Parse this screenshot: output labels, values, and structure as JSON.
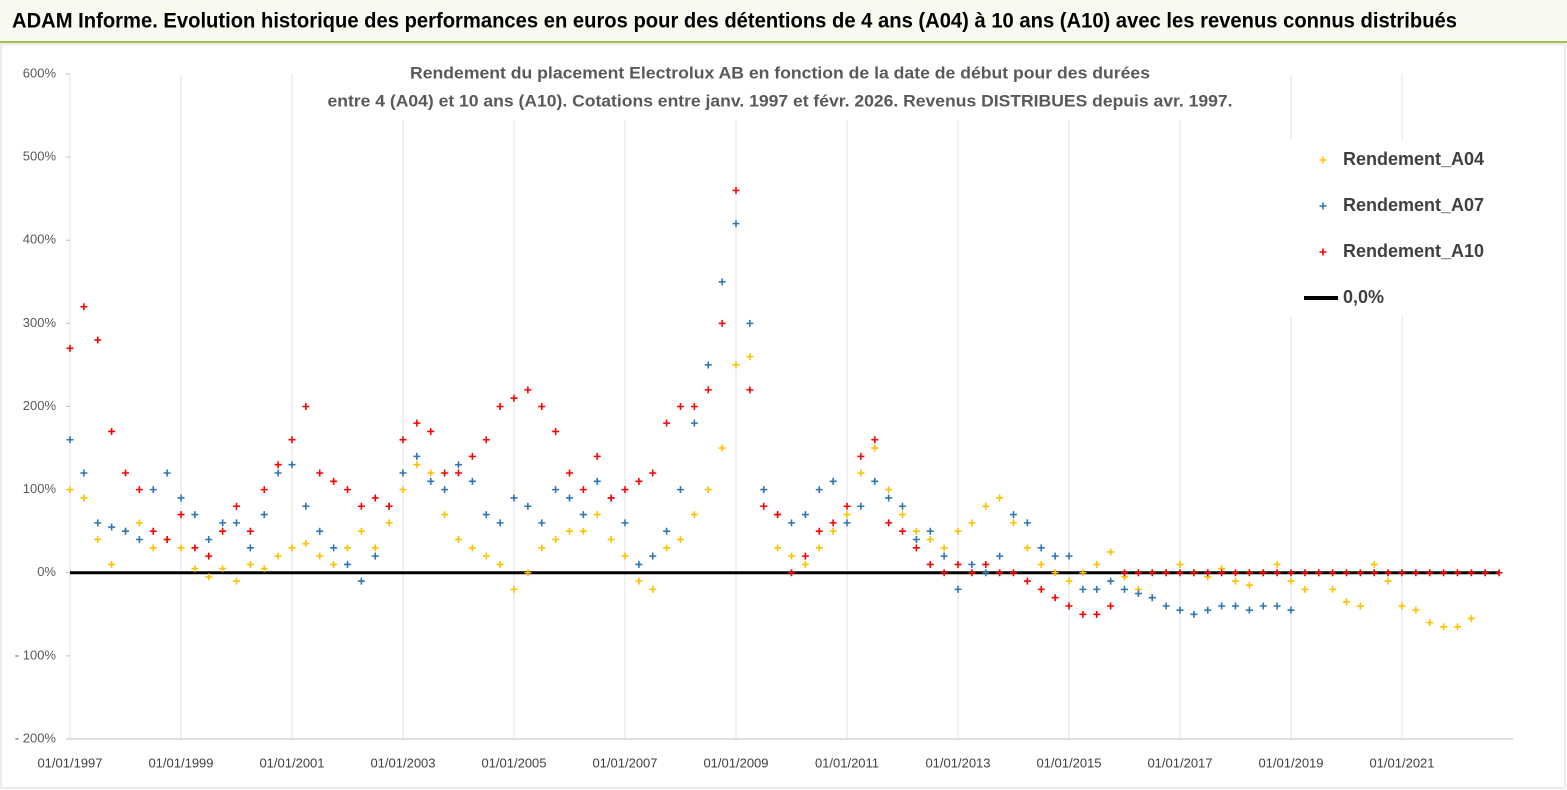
{
  "header": "ADAM Informe. Evolution historique des performances en euros pour des détentions de 4 ans (A04) à 10 ans (A10) avec les revenus connus distribués",
  "chart_data": {
    "type": "scatter",
    "title": [
      "Rendement du placement Electrolux AB en fonction de la date de début pour des durées",
      "entre 4 (A04) et 10 ans (A10). Cotations entre janv. 1997 et févr. 2026. Revenus DISTRIBUES depuis avr. 1997."
    ],
    "x": [
      "01/01/1997",
      "01/04/1997",
      "01/07/1997",
      "01/10/1997",
      "01/01/1998",
      "01/04/1998",
      "01/07/1998",
      "01/10/1998",
      "01/01/1999",
      "01/04/1999",
      "01/07/1999",
      "01/10/1999",
      "01/01/2000",
      "01/04/2000",
      "01/07/2000",
      "01/10/2000",
      "01/01/2001",
      "01/04/2001",
      "01/07/2001",
      "01/10/2001",
      "01/01/2002",
      "01/04/2002",
      "01/07/2002",
      "01/10/2002",
      "01/01/2003",
      "01/04/2003",
      "01/07/2003",
      "01/10/2003",
      "01/01/2004",
      "01/04/2004",
      "01/07/2004",
      "01/10/2004",
      "01/01/2005",
      "01/04/2005",
      "01/07/2005",
      "01/10/2005",
      "01/01/2006",
      "01/04/2006",
      "01/07/2006",
      "01/10/2006",
      "01/01/2007",
      "01/04/2007",
      "01/07/2007",
      "01/10/2007",
      "01/01/2008",
      "01/04/2008",
      "01/07/2008",
      "01/10/2008",
      "01/01/2009",
      "01/04/2009",
      "01/07/2009",
      "01/10/2009",
      "01/01/2010",
      "01/04/2010",
      "01/07/2010",
      "01/10/2010",
      "01/01/2011",
      "01/04/2011",
      "01/07/2011",
      "01/10/2011",
      "01/01/2012",
      "01/04/2012",
      "01/07/2012",
      "01/10/2012",
      "01/01/2013",
      "01/04/2013",
      "01/07/2013",
      "01/10/2013",
      "01/01/2014",
      "01/04/2014",
      "01/07/2014",
      "01/10/2014",
      "01/01/2015",
      "01/04/2015",
      "01/07/2015",
      "01/10/2015",
      "01/01/2016",
      "01/04/2016",
      "01/07/2016",
      "01/10/2016",
      "01/01/2017",
      "01/04/2017",
      "01/07/2017",
      "01/10/2017",
      "01/01/2018",
      "01/04/2018",
      "01/07/2018",
      "01/10/2018",
      "01/01/2019",
      "01/04/2019",
      "01/07/2019",
      "01/10/2019",
      "01/01/2020",
      "01/04/2020",
      "01/07/2020",
      "01/10/2020",
      "01/01/2021",
      "01/04/2021",
      "01/07/2021",
      "01/10/2021",
      "01/01/2022",
      "01/04/2022",
      "01/07/2022",
      "01/10/2022"
    ],
    "series": [
      {
        "name": "Rendement_A04",
        "color": "#ffc000",
        "values": [
          100,
          90,
          40,
          10,
          50,
          60,
          30,
          40,
          30,
          5,
          -5,
          5,
          -10,
          10,
          5,
          20,
          30,
          35,
          20,
          10,
          30,
          50,
          30,
          60,
          100,
          130,
          120,
          70,
          40,
          30,
          20,
          10,
          -20,
          0,
          30,
          40,
          50,
          50,
          70,
          40,
          20,
          -10,
          -20,
          30,
          40,
          70,
          100,
          150,
          250,
          260,
          100,
          30,
          20,
          10,
          30,
          50,
          70,
          120,
          150,
          100,
          70,
          50,
          40,
          30,
          50,
          60,
          80,
          90,
          60,
          30,
          10,
          0,
          -10,
          0,
          10,
          25,
          -5,
          -20,
          -30,
          0,
          10,
          0,
          -5,
          5,
          -10,
          -15,
          0,
          10,
          -10,
          -20,
          0,
          -20,
          -35,
          -40,
          10,
          -10,
          -40,
          -45,
          -60,
          -65,
          -65,
          -55,
          null,
          null
        ]
      },
      {
        "name": "Rendement_A07",
        "color": "#2e75b6",
        "values": [
          160,
          120,
          60,
          55,
          50,
          40,
          100,
          120,
          90,
          70,
          40,
          60,
          60,
          30,
          70,
          120,
          130,
          80,
          50,
          30,
          10,
          -10,
          20,
          80,
          120,
          140,
          110,
          100,
          130,
          110,
          70,
          60,
          90,
          80,
          60,
          100,
          90,
          70,
          110,
          90,
          60,
          10,
          20,
          50,
          100,
          180,
          250,
          350,
          420,
          300,
          100,
          70,
          60,
          70,
          100,
          110,
          60,
          80,
          110,
          90,
          80,
          40,
          50,
          20,
          -20,
          10,
          0,
          20,
          70,
          60,
          30,
          20,
          20,
          -20,
          -20,
          -10,
          -20,
          -25,
          -30,
          -40,
          -45,
          -50,
          -45,
          -40,
          -40,
          -45,
          -40,
          -40,
          -45,
          null,
          null,
          null,
          null,
          null,
          null,
          null,
          null,
          null,
          null,
          null,
          null,
          null,
          null,
          null
        ]
      },
      {
        "name": "Rendement_A10",
        "color": "#ff0000",
        "values": [
          270,
          320,
          280,
          170,
          120,
          100,
          50,
          40,
          70,
          30,
          20,
          50,
          80,
          50,
          100,
          130,
          160,
          200,
          120,
          110,
          100,
          80,
          90,
          80,
          160,
          180,
          170,
          120,
          120,
          140,
          160,
          200,
          210,
          220,
          200,
          170,
          120,
          100,
          140,
          90,
          100,
          110,
          120,
          180,
          200,
          200,
          220,
          300,
          460,
          220,
          80,
          70,
          0,
          20,
          50,
          60,
          80,
          140,
          160,
          60,
          50,
          30,
          10,
          0,
          10,
          0,
          10,
          0,
          0,
          -10,
          -20,
          -30,
          -40,
          -50,
          -50,
          -40,
          0,
          0,
          0,
          0,
          0,
          0,
          0,
          0,
          0,
          0,
          0,
          0,
          0,
          0,
          0,
          0,
          0,
          0,
          0,
          0,
          0,
          0,
          0,
          0,
          0,
          0,
          0,
          0
        ]
      },
      {
        "name": "0,0%",
        "color": "#000000",
        "type": "line",
        "x": [
          "01/01/1997",
          "01/10/2022"
        ],
        "values": [
          0,
          0
        ]
      }
    ],
    "xlim": [
      "01/01/1997",
      "01/01/2023"
    ],
    "xticks": [
      "01/01/1997",
      "01/01/1999",
      "01/01/2001",
      "01/01/2003",
      "01/01/2005",
      "01/01/2007",
      "01/01/2009",
      "01/01/2011",
      "01/01/2013",
      "01/01/2015",
      "01/01/2017",
      "01/01/2019",
      "01/01/2021"
    ],
    "ylim": [
      -200,
      600
    ],
    "yticks": [
      {
        "value": -200,
        "label": "- 200%"
      },
      {
        "value": -100,
        "label": "- 100%"
      },
      {
        "value": 0,
        "label": "0%"
      },
      {
        "value": 100,
        "label": "100%"
      },
      {
        "value": 200,
        "label": "200%"
      },
      {
        "value": 300,
        "label": "300%"
      },
      {
        "value": 400,
        "label": "400%"
      },
      {
        "value": 500,
        "label": "500%"
      },
      {
        "value": 600,
        "label": "600%"
      }
    ],
    "grid": "x",
    "legend": "upper right"
  }
}
